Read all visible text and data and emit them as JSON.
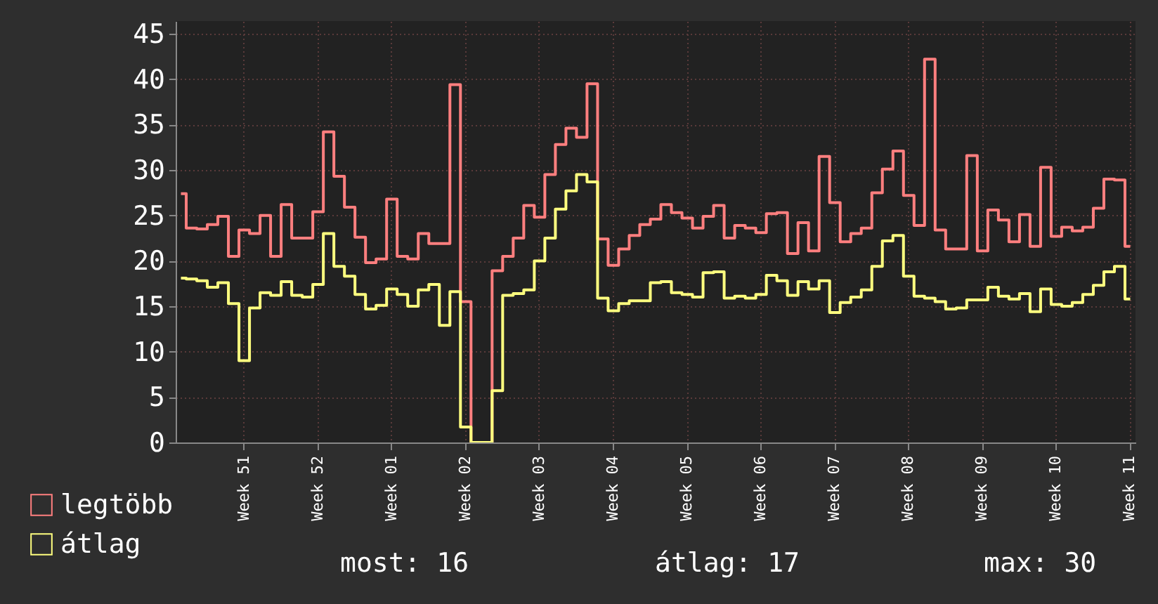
{
  "chart_data": {
    "type": "step",
    "categories": [
      null,
      null,
      null,
      null,
      null,
      null,
      "Week 51",
      null,
      null,
      null,
      null,
      null,
      null,
      "Week 52",
      null,
      null,
      null,
      null,
      null,
      null,
      "Week 01",
      null,
      null,
      null,
      null,
      null,
      null,
      "Week 02",
      null,
      null,
      null,
      null,
      null,
      null,
      "Week 03",
      null,
      null,
      null,
      null,
      null,
      null,
      "Week 04",
      null,
      null,
      null,
      null,
      null,
      null,
      "Week 05",
      null,
      null,
      null,
      null,
      null,
      null,
      "Week 06",
      null,
      null,
      null,
      null,
      null,
      null,
      "Week 07",
      null,
      null,
      null,
      null,
      null,
      null,
      "Week 08",
      null,
      null,
      null,
      null,
      null,
      null,
      "Week 09",
      null,
      null,
      null,
      null,
      null,
      null,
      "Week 10",
      null,
      null,
      null,
      null,
      null,
      null,
      "Week 11"
    ],
    "series": [
      {
        "name": "legtöbb",
        "color": "#ff7f7f",
        "values": [
          27.4,
          23.6,
          23.5,
          24.0,
          24.9,
          20.5,
          23.4,
          23.0,
          25.0,
          20.5,
          26.2,
          22.5,
          22.5,
          25.4,
          34.2,
          29.3,
          25.9,
          22.6,
          19.8,
          20.2,
          26.8,
          20.5,
          20.2,
          23.0,
          21.9,
          21.9,
          39.4,
          15.5,
          0,
          0,
          18.9,
          20.5,
          22.5,
          26.1,
          24.8,
          29.5,
          32.8,
          34.6,
          33.6,
          39.5,
          22.4,
          19.5,
          21.3,
          22.8,
          24.0,
          24.6,
          26.2,
          25.3,
          24.7,
          23.6,
          24.9,
          26.1,
          22.5,
          23.9,
          23.6,
          23.1,
          25.2,
          25.3,
          20.8,
          24.2,
          21.1,
          31.5,
          26.4,
          22.1,
          23.0,
          23.6,
          27.5,
          30.1,
          32.1,
          27.2,
          23.9,
          42.2,
          23.4,
          21.3,
          21.3,
          31.6,
          21.1,
          25.6,
          24.5,
          22.1,
          25.1,
          21.6,
          30.3,
          22.7,
          23.7,
          23.3,
          23.7,
          25.8,
          29.0,
          28.9,
          21.6
        ]
      },
      {
        "name": "átlag",
        "color": "#ffff7f",
        "values": [
          18.1,
          18.0,
          17.8,
          17.1,
          17.6,
          15.3,
          9.0,
          14.8,
          16.5,
          16.2,
          17.7,
          16.2,
          16.0,
          17.4,
          23.0,
          19.4,
          18.3,
          16.3,
          14.7,
          15.1,
          16.9,
          16.3,
          15.0,
          16.8,
          17.4,
          12.9,
          16.6,
          1.7,
          0,
          0,
          5.7,
          16.2,
          16.4,
          16.8,
          20.0,
          22.5,
          25.7,
          27.7,
          29.5,
          28.7,
          15.9,
          14.5,
          15.3,
          15.6,
          15.6,
          17.6,
          17.7,
          16.5,
          16.3,
          16.0,
          18.7,
          18.8,
          15.9,
          16.1,
          15.9,
          16.3,
          18.4,
          17.8,
          16.2,
          17.7,
          16.9,
          17.8,
          14.3,
          15.4,
          16.0,
          16.8,
          19.4,
          22.2,
          22.8,
          18.3,
          16.1,
          15.9,
          15.5,
          14.7,
          14.8,
          15.7,
          15.7,
          17.1,
          16.1,
          15.8,
          16.4,
          14.4,
          16.9,
          15.2,
          15.0,
          15.4,
          16.3,
          17.3,
          18.8,
          19.4,
          15.8
        ]
      }
    ],
    "ylim": [
      0,
      46.4
    ],
    "yticks": [
      0,
      5,
      10,
      15,
      20,
      25,
      30,
      35,
      40,
      45
    ],
    "grid": true,
    "legend": "bottom left",
    "marker": "none",
    "line_style": "solid",
    "annotations": [
      "most: 16",
      "átlag: 17",
      "max: 30"
    ]
  }
}
